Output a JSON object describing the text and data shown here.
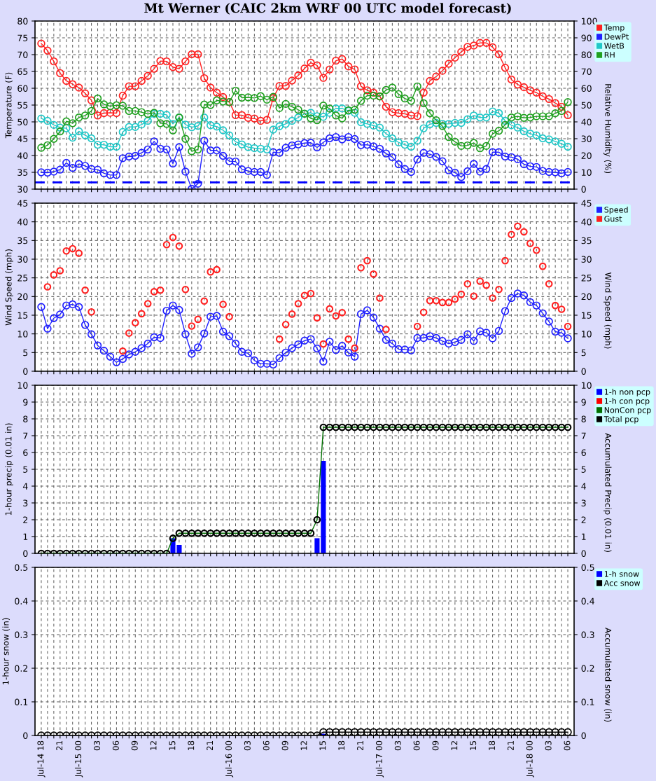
{
  "chart_data": [
    {
      "type": "line",
      "title": "Mt Werner (CAIC 2km WRF 00 UTC model forecast)",
      "ylabel": "Temperature (F)",
      "y2label": "Relative Humidity (%)",
      "categories": [
        null,
        null,
        null,
        null,
        null,
        null,
        null,
        null,
        null,
        null,
        null,
        null,
        null,
        null,
        null,
        null,
        null,
        null,
        null,
        null,
        null,
        null,
        null,
        null,
        null,
        null,
        null,
        null,
        null,
        null,
        null,
        null,
        null,
        null,
        null,
        null,
        null,
        null,
        null,
        null,
        null,
        null,
        null,
        null,
        null,
        null,
        null,
        null,
        null,
        null,
        null,
        null,
        null,
        null,
        null,
        null,
        null,
        null,
        null,
        null,
        null,
        null,
        null,
        null,
        null,
        null,
        null,
        null,
        null,
        null,
        null,
        null,
        null,
        null,
        null,
        null,
        null,
        null,
        null,
        null,
        null,
        null,
        null,
        null,
        null
      ],
      "ylim": [
        30,
        80
      ],
      "yticks": [
        30,
        35,
        40,
        45,
        50,
        55,
        60,
        65,
        70,
        75,
        80
      ],
      "y2lim": [
        0,
        100
      ],
      "y2ticks": [
        0,
        10,
        20,
        30,
        40,
        50,
        60,
        70,
        80,
        90,
        100
      ],
      "tick_labels": "y",
      "grid": true,
      "legend": "top right",
      "marker": "circle",
      "line_style": "solid",
      "ref_lines": [
        {
          "axis": "y",
          "value": 32,
          "color": "#0000ff",
          "line_style": "dashed"
        }
      ],
      "series": [
        {
          "name": "Temp",
          "color": "#ff2020",
          "values": [
            73.3,
            71.2,
            68.0,
            64.5,
            62.2,
            61.2,
            60.2,
            58.5,
            56.4,
            51.9,
            52.6,
            52.7,
            52.6,
            57.8,
            60.6,
            60.6,
            62.2,
            63.7,
            65.8,
            68.1,
            68.0,
            66.3,
            65.8,
            68.0,
            70.1,
            70.1,
            63.0,
            60.2,
            58.7,
            57.4,
            55.9,
            52.0,
            52.0,
            51.2,
            51.0,
            50.3,
            50.6,
            57.1,
            60.7,
            60.7,
            62.3,
            63.8,
            65.9,
            67.6,
            66.8,
            63.1,
            65.6,
            68.2,
            68.7,
            66.5,
            65.6,
            60.6,
            59.4,
            58.7,
            57.6,
            54.5,
            52.9,
            52.6,
            52.4,
            51.9,
            51.7,
            58.7,
            62.2,
            63.5,
            65.2,
            67.3,
            69.1,
            70.8,
            72.3,
            72.7,
            73.5,
            73.5,
            72.2,
            70.1,
            66.1,
            62.6,
            61.1,
            60.3,
            59.4,
            58.7,
            57.6,
            56.8,
            55.6,
            54.5,
            52.0
          ]
        },
        {
          "name": "DewPt",
          "color": "#2020ff",
          "values": [
            35.0,
            34.9,
            35.2,
            35.8,
            37.8,
            36.3,
            37.5,
            36.9,
            36.0,
            35.8,
            34.7,
            34.2,
            34.2,
            39.2,
            39.7,
            39.9,
            40.8,
            41.8,
            44.2,
            42.0,
            41.8,
            37.6,
            42.5,
            35.2,
            30.1,
            31.6,
            44.4,
            41.5,
            41.5,
            39.9,
            38.3,
            38.2,
            35.9,
            35.4,
            35.1,
            35.1,
            34.2,
            41.0,
            40.8,
            42.3,
            43.0,
            43.3,
            43.7,
            43.8,
            42.4,
            43.9,
            45.1,
            45.5,
            44.8,
            45.5,
            44.9,
            43.1,
            43.2,
            42.7,
            42.0,
            40.6,
            39.5,
            37.4,
            36.0,
            35.1,
            38.8,
            40.8,
            40.4,
            39.6,
            38.3,
            35.6,
            34.9,
            33.6,
            35.3,
            37.5,
            35.2,
            36.0,
            41.0,
            41.0,
            39.7,
            39.5,
            38.9,
            37.4,
            36.8,
            36.6,
            35.4,
            35.1,
            35.0,
            34.7,
            35.1
          ]
        },
        {
          "name": "WetB",
          "color": "#20c8c8",
          "values": [
            51.0,
            50.3,
            49.1,
            48.3,
            48.1,
            45.3,
            47.2,
            46.0,
            45.1,
            43.2,
            43.2,
            42.6,
            42.6,
            47.0,
            48.5,
            48.5,
            49.2,
            50.3,
            52.4,
            52.4,
            52.1,
            49.4,
            51.3,
            49.2,
            48.4,
            48.8,
            51.3,
            49.0,
            48.6,
            47.5,
            46.0,
            44.1,
            43.3,
            42.5,
            42.2,
            42.0,
            41.8,
            47.7,
            48.7,
            49.4,
            50.3,
            51.3,
            52.4,
            52.7,
            51.7,
            51.5,
            52.7,
            54.0,
            54.0,
            53.3,
            52.7,
            49.9,
            49.4,
            48.9,
            48.3,
            46.5,
            45.1,
            43.9,
            43.2,
            42.6,
            44.4,
            48.1,
            49.3,
            49.7,
            49.4,
            49.4,
            49.7,
            49.7,
            50.8,
            51.9,
            51.3,
            51.3,
            53.1,
            52.6,
            50.3,
            49.0,
            48.3,
            47.2,
            46.5,
            46.0,
            45.1,
            44.8,
            44.2,
            43.5,
            42.6
          ]
        },
        {
          "name": "RH",
          "color": "#20a020",
          "axis": "y2",
          "values": [
            24.6,
            26.1,
            29.9,
            34.3,
            40.3,
            39.2,
            42.6,
            43.8,
            46.5,
            53.9,
            50.4,
            49.3,
            49.9,
            49.6,
            46.5,
            46.5,
            45.8,
            44.7,
            45.4,
            39.2,
            38.8,
            34.9,
            42.6,
            29.9,
            22.5,
            23.6,
            50.3,
            50.0,
            52.8,
            52.1,
            51.8,
            58.6,
            54.4,
            54.6,
            54.2,
            55.3,
            53.2,
            54.9,
            48.2,
            50.7,
            49.0,
            47.2,
            44.9,
            42.1,
            41.0,
            49.7,
            47.9,
            43.8,
            42.1,
            46.9,
            47.2,
            52.5,
            55.6,
            55.6,
            55.1,
            59.0,
            60.4,
            56.5,
            53.9,
            52.5,
            61.1,
            51.1,
            45.1,
            41.0,
            37.5,
            31.0,
            28.2,
            25.7,
            26.0,
            27.5,
            24.3,
            25.7,
            32.9,
            34.7,
            38.2,
            42.6,
            43.3,
            42.4,
            42.6,
            43.3,
            43.3,
            43.3,
            45.1,
            46.5,
            51.8
          ]
        }
      ]
    },
    {
      "type": "line",
      "ylabel": "Wind Speed (mph)",
      "y2label": "Wind Speed (mph)",
      "categories": [
        null,
        null,
        null,
        null,
        null,
        null,
        null,
        null,
        null,
        null,
        null,
        null,
        null,
        null,
        null,
        null,
        null,
        null,
        null,
        null,
        null,
        null,
        null,
        null,
        null,
        null,
        null,
        null,
        null,
        null,
        null,
        null,
        null,
        null,
        null,
        null,
        null,
        null,
        null,
        null,
        null,
        null,
        null,
        null,
        null,
        null,
        null,
        null,
        null,
        null,
        null,
        null,
        null,
        null,
        null,
        null,
        null,
        null,
        null,
        null,
        null,
        null,
        null,
        null,
        null,
        null,
        null,
        null,
        null,
        null,
        null,
        null,
        null,
        null,
        null,
        null,
        null,
        null,
        null,
        null,
        null,
        null,
        null,
        null,
        null
      ],
      "ylim": [
        0,
        45
      ],
      "yticks": [
        0,
        5,
        10,
        15,
        20,
        25,
        30,
        35,
        40,
        45
      ],
      "y2lim": [
        0,
        45
      ],
      "y2ticks": [
        0,
        5,
        10,
        15,
        20,
        25,
        30,
        35,
        40,
        45
      ],
      "tick_labels": "y",
      "grid": true,
      "legend": "top right",
      "marker": "circle",
      "line_style": "solid",
      "series": [
        {
          "name": "Speed",
          "color": "#2020ff",
          "values": [
            17.2,
            11.4,
            14.2,
            15.2,
            17.6,
            17.9,
            17.2,
            12.4,
            9.9,
            6.9,
            5.5,
            3.9,
            2.4,
            3.3,
            4.5,
            5.2,
            6.2,
            7.4,
            9.1,
            8.9,
            16.2,
            17.6,
            16.4,
            9.9,
            4.7,
            6.4,
            10.1,
            14.6,
            14.8,
            10.6,
            9.4,
            7.4,
            5.2,
            4.8,
            2.9,
            2.0,
            2.0,
            1.8,
            3.5,
            5.0,
            6.2,
            7.2,
            8.2,
            8.6,
            6.1,
            2.6,
            7.9,
            5.7,
            6.8,
            5.0,
            3.9,
            15.3,
            16.3,
            14.4,
            11.4,
            8.4,
            7.4,
            5.9,
            5.8,
            5.6,
            8.9,
            8.9,
            9.4,
            8.9,
            8.1,
            7.4,
            7.8,
            8.4,
            9.9,
            8.1,
            10.7,
            10.3,
            8.8,
            10.8,
            16.1,
            19.6,
            20.8,
            20.3,
            18.5,
            17.6,
            15.5,
            13.3,
            10.6,
            10.3,
            8.8
          ]
        },
        {
          "name": "Gust",
          "color": "#ff2020",
          "type": "scatter",
          "values": [
            null,
            22.6,
            25.8,
            26.9,
            32.2,
            32.8,
            31.6,
            21.7,
            15.9,
            null,
            null,
            null,
            null,
            5.4,
            10.2,
            13.0,
            15.4,
            18.1,
            21.3,
            21.7,
            33.9,
            35.8,
            33.5,
            21.9,
            12.1,
            13.9,
            18.8,
            26.6,
            27.2,
            17.9,
            14.6,
            null,
            null,
            null,
            null,
            null,
            null,
            null,
            8.6,
            12.5,
            15.3,
            18.1,
            20.3,
            20.8,
            14.3,
            7.3,
            16.7,
            14.8,
            15.7,
            8.6,
            6.2,
            27.7,
            29.6,
            26.0,
            19.6,
            11.2,
            null,
            null,
            null,
            null,
            12.0,
            15.8,
            18.9,
            18.9,
            18.4,
            18.4,
            19.3,
            20.6,
            23.4,
            20.1,
            24.1,
            23.0,
            19.6,
            21.9,
            29.6,
            36.6,
            38.8,
            37.3,
            34.2,
            32.4,
            28.1,
            23.4,
            17.6,
            16.6,
            12.0
          ]
        }
      ]
    },
    {
      "type": "bar",
      "ylabel": "1-hour precip (0.01 in)",
      "y2label": "Accumulated Precip (0.01 in)",
      "categories": [
        null,
        null,
        null,
        null,
        null,
        null,
        null,
        null,
        null,
        null,
        null,
        null,
        null,
        null,
        null,
        null,
        null,
        null,
        null,
        null,
        null,
        null,
        null,
        null,
        null,
        null,
        null,
        null,
        null,
        null,
        null,
        null,
        null,
        null,
        null,
        null,
        null,
        null,
        null,
        null,
        null,
        null,
        null,
        null,
        null,
        null,
        null,
        null,
        null,
        null,
        null,
        null,
        null,
        null,
        null,
        null,
        null,
        null,
        null,
        null,
        null,
        null,
        null,
        null,
        null,
        null,
        null,
        null,
        null,
        null,
        null,
        null,
        null,
        null,
        null,
        null,
        null,
        null,
        null,
        null,
        null,
        null,
        null,
        null,
        null
      ],
      "ylim": [
        0,
        10
      ],
      "yticks": [
        0,
        1,
        2,
        3,
        4,
        5,
        6,
        7,
        8,
        9,
        10
      ],
      "y2lim": [
        0,
        10
      ],
      "y2ticks": [
        0,
        1,
        2,
        3,
        4,
        5,
        6,
        7,
        8,
        9,
        10
      ],
      "tick_labels": "y",
      "grid": true,
      "legend": "top right",
      "marker": "circle",
      "line_style": "solid",
      "series": [
        {
          "name": "1-h non pcp",
          "color": "#0000ff",
          "values": [
            0,
            0,
            0,
            0,
            0,
            0,
            0,
            0,
            0,
            0,
            0,
            0,
            0,
            0,
            0,
            0,
            0,
            0,
            0,
            0,
            0,
            0.9,
            0.5,
            0,
            0,
            0,
            0,
            0,
            0,
            0,
            0,
            0,
            0,
            0,
            0,
            0,
            0,
            0,
            0,
            0,
            0,
            0,
            0,
            0,
            0.9,
            5.5,
            0,
            0,
            0,
            0,
            0,
            0,
            0,
            0,
            0,
            0,
            0,
            0,
            0,
            0,
            0,
            0,
            0,
            0,
            0,
            0,
            0,
            0,
            0,
            0,
            0,
            0,
            0,
            0,
            0,
            0,
            0,
            0,
            0,
            0,
            0,
            0,
            0,
            0,
            0
          ]
        },
        {
          "name": "1-h con pcp",
          "color": "#ff0000",
          "values": [
            0,
            0,
            0,
            0,
            0,
            0,
            0,
            0,
            0,
            0,
            0,
            0,
            0,
            0,
            0,
            0,
            0,
            0,
            0,
            0,
            0,
            0,
            0,
            0,
            0,
            0,
            0,
            0,
            0,
            0,
            0,
            0,
            0,
            0,
            0,
            0,
            0,
            0,
            0,
            0,
            0,
            0,
            0,
            0,
            0,
            0,
            0,
            0,
            0,
            0,
            0,
            0,
            0,
            0,
            0,
            0,
            0,
            0,
            0,
            0,
            0,
            0,
            0,
            0,
            0,
            0,
            0,
            0,
            0,
            0,
            0,
            0,
            0,
            0,
            0,
            0,
            0,
            0,
            0,
            0,
            0,
            0,
            0,
            0,
            0
          ]
        },
        {
          "name": "NonCon pcp",
          "color": "#007000",
          "type": "line",
          "marker": "none",
          "axis": "y2",
          "values": [
            0,
            0,
            0,
            0,
            0,
            0,
            0,
            0,
            0,
            0,
            0,
            0,
            0,
            0,
            0,
            0,
            0,
            0,
            0,
            0,
            0,
            0.9,
            1.2,
            1.2,
            1.2,
            1.2,
            1.2,
            1.2,
            1.2,
            1.2,
            1.2,
            1.2,
            1.2,
            1.2,
            1.2,
            1.2,
            1.2,
            1.2,
            1.2,
            1.2,
            1.2,
            1.2,
            1.2,
            1.2,
            2.0,
            7.5,
            7.5,
            7.5,
            7.5,
            7.5,
            7.5,
            7.5,
            7.5,
            7.5,
            7.5,
            7.5,
            7.5,
            7.5,
            7.5,
            7.5,
            7.5,
            7.5,
            7.5,
            7.5,
            7.5,
            7.5,
            7.5,
            7.5,
            7.5,
            7.5,
            7.5,
            7.5,
            7.5,
            7.5,
            7.5,
            7.5,
            7.5,
            7.5,
            7.5,
            7.5,
            7.5,
            7.5,
            7.5,
            7.5,
            7.5
          ]
        },
        {
          "name": "Total pcp",
          "color": "#000000",
          "type": "scatter",
          "axis": "y2",
          "values": [
            0,
            0,
            0,
            0,
            0,
            0,
            0,
            0,
            0,
            0,
            0,
            0,
            0,
            0,
            0,
            0,
            0,
            0,
            0,
            0,
            0,
            0.9,
            1.2,
            1.2,
            1.2,
            1.2,
            1.2,
            1.2,
            1.2,
            1.2,
            1.2,
            1.2,
            1.2,
            1.2,
            1.2,
            1.2,
            1.2,
            1.2,
            1.2,
            1.2,
            1.2,
            1.2,
            1.2,
            1.2,
            2.0,
            7.5,
            7.5,
            7.5,
            7.5,
            7.5,
            7.5,
            7.5,
            7.5,
            7.5,
            7.5,
            7.5,
            7.5,
            7.5,
            7.5,
            7.5,
            7.5,
            7.5,
            7.5,
            7.5,
            7.5,
            7.5,
            7.5,
            7.5,
            7.5,
            7.5,
            7.5,
            7.5,
            7.5,
            7.5,
            7.5,
            7.5,
            7.5,
            7.5,
            7.5,
            7.5,
            7.5,
            7.5,
            7.5,
            7.5,
            7.5
          ]
        }
      ]
    },
    {
      "type": "bar",
      "ylabel": "1-hour snow (in)",
      "y2label": "Accumulated snow (in)",
      "categories": [
        "Jul-14 18",
        null,
        null,
        "21",
        null,
        null,
        "Jul-15 00",
        null,
        null,
        "03",
        null,
        null,
        "06",
        null,
        null,
        "09",
        null,
        null,
        "12",
        null,
        null,
        "15",
        null,
        null,
        "18",
        null,
        null,
        "21",
        null,
        null,
        "Jul-16 00",
        null,
        null,
        "03",
        null,
        null,
        "06",
        null,
        null,
        "09",
        null,
        null,
        "12",
        null,
        null,
        "15",
        null,
        null,
        "18",
        null,
        null,
        "21",
        null,
        null,
        "Jul-17 00",
        null,
        null,
        "03",
        null,
        null,
        "06",
        null,
        null,
        "09",
        null,
        null,
        "12",
        null,
        null,
        "15",
        null,
        null,
        "18",
        null,
        null,
        "21",
        null,
        null,
        "Jul-18 00",
        null,
        null,
        "03",
        null,
        null,
        "06"
      ],
      "ylim": [
        0,
        0.5
      ],
      "yticks": [
        0,
        0.1,
        0.2,
        0.3,
        0.4,
        0.5
      ],
      "y2lim": [
        0,
        0.5
      ],
      "y2ticks": [
        0,
        0.1,
        0.2,
        0.3,
        0.4,
        0.5
      ],
      "grid": true,
      "legend": "top right",
      "marker": "circle",
      "line_style": "solid",
      "series": [
        {
          "name": "1-h snow",
          "color": "#0000ff",
          "values": [
            0,
            0,
            0,
            0,
            0,
            0,
            0,
            0,
            0,
            0,
            0,
            0,
            0,
            0,
            0,
            0,
            0,
            0,
            0,
            0,
            0,
            0,
            0,
            0,
            0,
            0,
            0,
            0,
            0,
            0,
            0,
            0,
            0,
            0,
            0,
            0,
            0,
            0,
            0,
            0,
            0,
            0,
            0,
            0,
            0,
            0.005,
            0,
            0,
            0,
            0,
            0,
            0,
            0,
            0,
            0,
            0,
            0,
            0,
            0,
            0,
            0,
            0,
            0,
            0,
            0,
            0,
            0,
            0,
            0,
            0,
            0,
            0,
            0,
            0,
            0,
            0,
            0,
            0,
            0,
            0,
            0,
            0,
            0,
            0,
            0
          ]
        },
        {
          "name": "Acc snow",
          "color": "#000000",
          "type": "line",
          "axis": "y2",
          "values": [
            0,
            0,
            0,
            0,
            0,
            0,
            0,
            0,
            0,
            0,
            0,
            0,
            0,
            0,
            0,
            0,
            0,
            0,
            0,
            0,
            0,
            0,
            0,
            0,
            0,
            0,
            0,
            0,
            0,
            0,
            0,
            0,
            0,
            0,
            0,
            0,
            0,
            0,
            0,
            0,
            0,
            0,
            0,
            0,
            0,
            0.01,
            0.01,
            0.01,
            0.01,
            0.01,
            0.01,
            0.01,
            0.01,
            0.01,
            0.01,
            0.01,
            0.01,
            0.01,
            0.01,
            0.01,
            0.01,
            0.01,
            0.01,
            0.01,
            0.01,
            0.01,
            0.01,
            0.01,
            0.01,
            0.01,
            0.01,
            0.01,
            0.01,
            0.01,
            0.01,
            0.01,
            0.01,
            0.01,
            0.01,
            0.01,
            0.01,
            0.01,
            0.01,
            0.01,
            0.01
          ]
        }
      ]
    }
  ]
}
